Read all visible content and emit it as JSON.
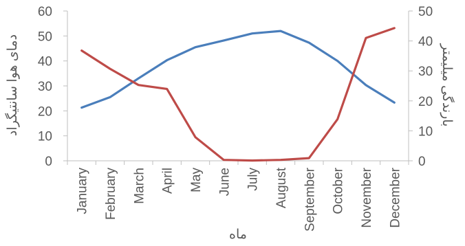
{
  "chart_data": {
    "type": "line",
    "title": "",
    "xlabel": "ماه",
    "ylabel": "دمای هوا سانتیگراد",
    "y2label": "بارندگی میلیمتر",
    "categories": [
      "January",
      "February",
      "March",
      "April",
      "May",
      "June",
      "July",
      "August",
      "September",
      "October",
      "November",
      "December"
    ],
    "ylim": [
      0,
      60
    ],
    "yticks": [
      0,
      10,
      20,
      30,
      40,
      50,
      60
    ],
    "y2lim": [
      0,
      50
    ],
    "y2ticks": [
      0,
      10,
      20,
      30,
      40,
      50
    ],
    "grid": false,
    "legend": "none",
    "series": [
      {
        "axis": "left",
        "color": "#4a7ebb",
        "values": [
          21.3,
          25.5,
          33.0,
          40.3,
          45.5,
          48.2,
          51.0,
          52.0,
          47.3,
          40.0,
          30.3,
          23.3
        ]
      },
      {
        "axis": "right",
        "color": "#be4b48",
        "values": [
          36.8,
          30.7,
          25.3,
          24.0,
          7.9,
          0.3,
          0.1,
          0.3,
          0.9,
          13.9,
          41.0,
          44.3
        ]
      }
    ]
  }
}
